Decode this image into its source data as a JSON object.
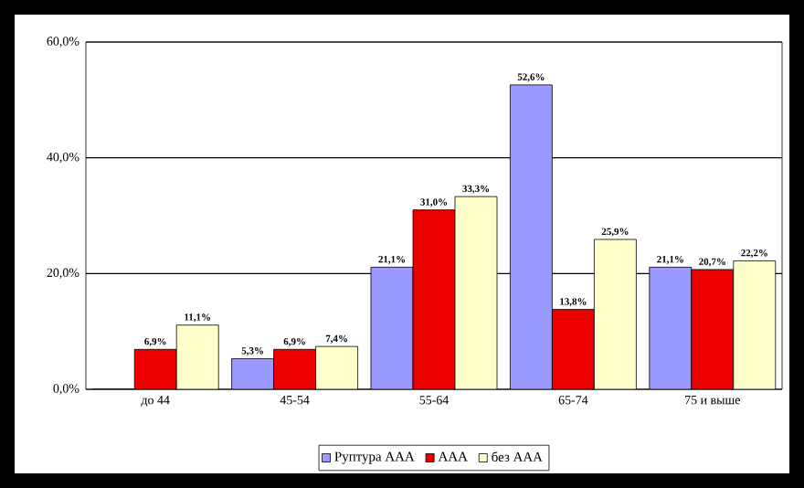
{
  "chart_data": {
    "type": "bar",
    "categories": [
      "до 44",
      "45-54",
      "55-64",
      "65-74",
      "75 и выше"
    ],
    "series": [
      {
        "name": "Руптура ААА",
        "color": "#9999ff",
        "values": [
          0,
          5.3,
          21.1,
          52.6,
          21.1
        ],
        "value_labels": [
          null,
          "5,3%",
          "21,1%",
          "52,6%",
          "21,1%"
        ]
      },
      {
        "name": "ААА",
        "color": "#ee0000",
        "values": [
          6.9,
          6.9,
          31.0,
          13.8,
          20.7
        ],
        "value_labels": [
          "6,9%",
          "6,9%",
          "31,0%",
          "13,8%",
          "20,7%"
        ]
      },
      {
        "name": "без ААА",
        "color": "#ffffcc",
        "values": [
          11.1,
          7.4,
          33.3,
          25.9,
          22.2
        ],
        "value_labels": [
          "11,1%",
          "7,4%",
          "33,3%",
          "25,9%",
          "22,2%"
        ]
      }
    ],
    "ylim": [
      0,
      60
    ],
    "yticks": [
      {
        "value": 0,
        "label": "0,0%"
      },
      {
        "value": 20,
        "label": "20,0%"
      },
      {
        "value": 40,
        "label": "40,0%"
      },
      {
        "value": 60,
        "label": "60,0%"
      }
    ],
    "grid": "y",
    "legend": "bottom"
  }
}
